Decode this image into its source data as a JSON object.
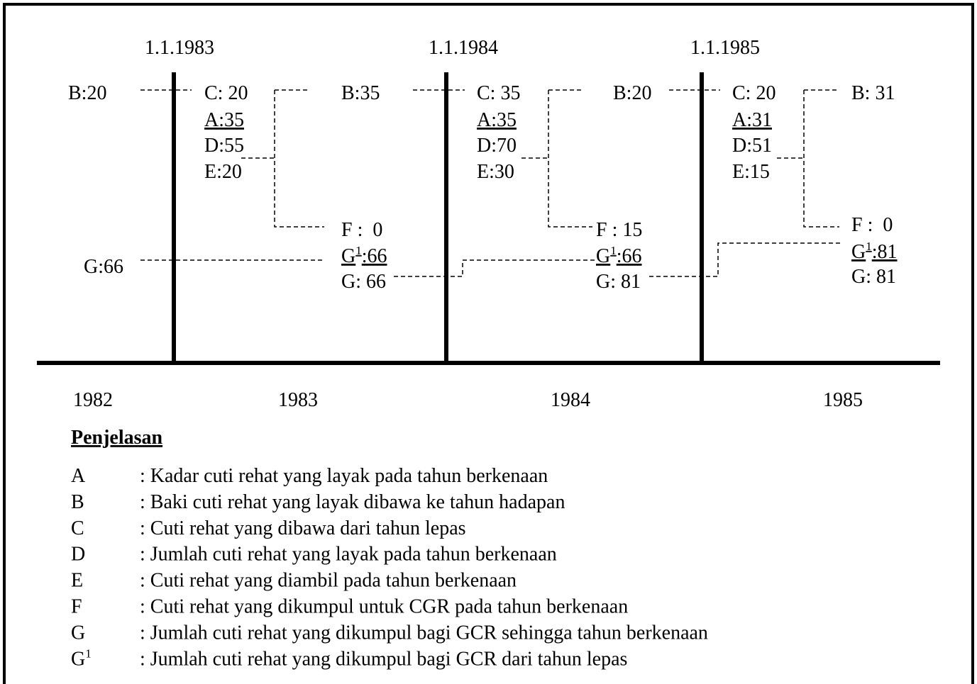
{
  "timeline": {
    "dates": [
      "1.1.1983",
      "1.1.1984",
      "1.1.1985"
    ],
    "years": [
      "1982",
      "1983",
      "1984",
      "1985"
    ],
    "labels": [
      "B:20",
      "C: 20",
      "A:35",
      "D:55",
      "E:20",
      "B:35",
      "F :  0",
      {
        "base": "G",
        "sup": "1",
        "rest": ":66"
      },
      "G: 66",
      "G:66",
      "C: 35",
      "A:35",
      "D:70",
      "E:30",
      "B:20",
      "F : 15",
      {
        "base": "G",
        "sup": "1",
        "rest": ":66"
      },
      "G: 81",
      "C: 20",
      "A:31",
      "D:51",
      "E:15",
      "B: 31",
      "F :  0",
      {
        "base": "G",
        "sup": "1",
        "rest": ":81"
      },
      "G: 81"
    ]
  },
  "legend": {
    "title": "Penjelasan",
    "rows": [
      {
        "key": "A",
        "text": ": Kadar cuti rehat yang layak pada tahun berkenaan"
      },
      {
        "key": "B",
        "text": ": Baki cuti rehat yang layak dibawa ke tahun hadapan"
      },
      {
        "key": "C",
        "text": ": Cuti rehat yang dibawa dari tahun lepas"
      },
      {
        "key": "D",
        "text": ": Jumlah cuti rehat yang layak pada tahun berkenaan"
      },
      {
        "key": "E",
        "text": ": Cuti rehat yang diambil pada tahun berkenaan"
      },
      {
        "key": "F",
        "text": ": Cuti rehat yang dikumpul untuk CGR pada tahun berkenaan"
      },
      {
        "key": "G",
        "text": ": Jumlah cuti rehat yang dikumpul bagi GCR sehingga tahun berkenaan"
      },
      {
        "key": {
          "base": "G",
          "sup": "1"
        },
        "text": ": Jumlah cuti rehat yang dikumpul bagi GCR dari tahun lepas"
      }
    ]
  }
}
